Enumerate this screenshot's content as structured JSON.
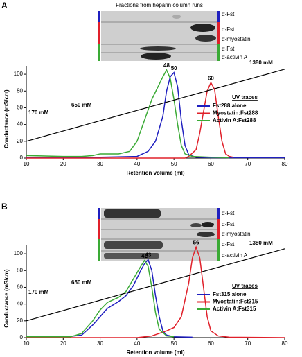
{
  "chart_data": [
    {
      "type": "line",
      "panel": "A",
      "blot_title": "Fractions from heparin column runs",
      "blot_labels": [
        "α-Fst",
        "α-Fst",
        "α-myostatin",
        "α-Fst",
        "α-activin A"
      ],
      "x_label": "Retention volume (ml)",
      "y_label": "Conductance (mS/cm)",
      "xlim": [
        10,
        80
      ],
      "xticks": [
        10,
        20,
        30,
        40,
        50,
        60,
        70,
        80
      ],
      "ylim": [
        0,
        110
      ],
      "yticks": [
        0,
        20,
        40,
        60,
        80,
        100
      ],
      "legend_title": "UV traces",
      "annotations": [
        "170 mM",
        "650 mM",
        "1380 mM"
      ],
      "series": [
        {
          "name": "Fst288 alone",
          "color": "#1f1fbf",
          "peak": 50,
          "x": [
            10,
            30,
            40,
            43,
            45,
            47,
            48,
            49,
            50,
            51,
            52,
            53,
            54,
            56,
            60,
            80
          ],
          "values": [
            1,
            1,
            2,
            8,
            20,
            50,
            80,
            97,
            102,
            85,
            45,
            15,
            4,
            1,
            0.5,
            0.5
          ]
        },
        {
          "name": "Myostatin:Fst288",
          "color": "#e0202a",
          "peak": 60,
          "x": [
            10,
            40,
            53,
            54,
            56,
            57,
            58,
            59,
            60,
            61,
            62,
            63,
            64,
            65,
            66
          ],
          "values": [
            0,
            0,
            0,
            2,
            10,
            30,
            55,
            80,
            90,
            82,
            50,
            20,
            5,
            2,
            1
          ]
        },
        {
          "name": "Activin A:Fst288",
          "color": "#3aaa35",
          "peak": 48,
          "x": [
            10,
            20,
            25,
            28,
            30,
            35,
            38,
            40,
            42,
            44,
            46,
            47,
            48,
            49,
            50,
            51,
            52,
            53,
            55,
            60,
            65
          ],
          "values": [
            3,
            2,
            2,
            3,
            5,
            5,
            8,
            20,
            45,
            70,
            88,
            97,
            105,
            95,
            70,
            40,
            15,
            5,
            2,
            1,
            0.5
          ]
        },
        {
          "color": "#000000",
          "x": [
            10,
            80
          ],
          "values": [
            20,
            106
          ]
        }
      ]
    },
    {
      "type": "line",
      "panel": "B",
      "blot_labels": [
        "α-Fst",
        "α-Fst",
        "α-myostatin",
        "α-Fst",
        "α-activin A"
      ],
      "x_label": "Retention volume (ml)",
      "y_label": "Conductance (mS/cm)",
      "xlim": [
        10,
        80
      ],
      "xticks": [
        10,
        20,
        30,
        40,
        50,
        60,
        70,
        80
      ],
      "ylim": [
        0,
        110
      ],
      "yticks": [
        0,
        20,
        40,
        60,
        80,
        100
      ],
      "legend_title": "UV traces",
      "annotations": [
        "170 mM",
        "650 mM",
        "1380 mM"
      ],
      "series": [
        {
          "name": "Fst315 alone",
          "color": "#1f1fbf",
          "peak": 43,
          "x": [
            10,
            20,
            25,
            28,
            30,
            32,
            35,
            37,
            39,
            41,
            42,
            43,
            44,
            45,
            46,
            47,
            48,
            50,
            55
          ],
          "values": [
            0,
            0.5,
            3,
            15,
            25,
            35,
            43,
            50,
            62,
            80,
            88,
            93,
            80,
            50,
            25,
            8,
            3,
            1,
            0.5
          ]
        },
        {
          "name": "Myostatin:Fst315",
          "color": "#e0202a",
          "peak": 56,
          "x": [
            10,
            40,
            44,
            46,
            48,
            50,
            52,
            54,
            55,
            56,
            57,
            58,
            59,
            60,
            62,
            65,
            80
          ],
          "values": [
            0,
            0,
            2,
            5,
            8,
            12,
            25,
            65,
            95,
            108,
            95,
            60,
            25,
            8,
            2,
            0.5,
            0
          ]
        },
        {
          "name": "Activin A:Fst315",
          "color": "#3aaa35",
          "peak": 42,
          "x": [
            10,
            22,
            25,
            28,
            30,
            32,
            35,
            37,
            39,
            41,
            42,
            43,
            44,
            45,
            46,
            48,
            50
          ],
          "values": [
            1,
            1,
            5,
            20,
            33,
            42,
            48,
            55,
            70,
            85,
            92,
            85,
            60,
            30,
            10,
            2,
            1
          ]
        },
        {
          "color": "#000000",
          "x": [
            10,
            80
          ],
          "values": [
            20,
            106
          ]
        }
      ]
    }
  ]
}
